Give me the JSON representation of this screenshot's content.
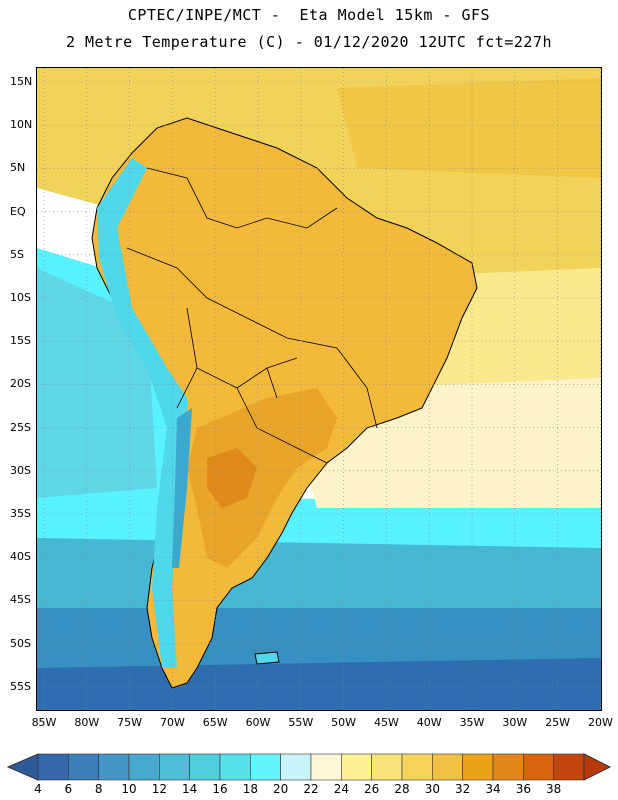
{
  "header": {
    "title_line1": "CPTEC/INPE/MCT -  Eta Model 15km - GFS",
    "title_line2": "2 Metre Temperature (C) - 01/12/2020 12UTC fct=227h"
  },
  "map": {
    "lat_ticks": [
      "15N",
      "10N",
      "5N",
      "EQ",
      "5S",
      "10S",
      "15S",
      "20S",
      "25S",
      "30S",
      "35S",
      "40S",
      "45S",
      "50S",
      "55S"
    ],
    "lon_ticks": [
      "85W",
      "80W",
      "75W",
      "70W",
      "65W",
      "60W",
      "55W",
      "50W",
      "45W",
      "40W",
      "35W",
      "30W",
      "25W",
      "20W"
    ],
    "colors": {
      "ocean_north": "#f2d35a",
      "ocean_north_warm": "#f0c846",
      "ocean_tropical": "#fbe98e",
      "ocean_subtrop": "#fdf3c8",
      "ocean_cool": "#5fd7e6",
      "ocean_cyan": "#59f3ff",
      "ocean_mid": "#46b8d4",
      "ocean_south": "#3690c2",
      "ocean_deep": "#2e6db0",
      "land_warm": "#f2b93a",
      "land_hot": "#e9a52a",
      "land_hotter": "#e08a1c",
      "andes": "#4fd7ea",
      "andes_cold": "#3aa8cf",
      "coastline": "#000000",
      "grid": "#888888"
    }
  },
  "colorbar": {
    "labels": [
      "4",
      "6",
      "8",
      "10",
      "12",
      "14",
      "16",
      "18",
      "20",
      "22",
      "24",
      "26",
      "28",
      "30",
      "32",
      "34",
      "36",
      "38"
    ],
    "colors": [
      "#3468ab",
      "#3b7fb8",
      "#4396c6",
      "#48a9cf",
      "#4dbdd8",
      "#51cfdf",
      "#58e3ec",
      "#63f6ff",
      "#c9f4fb",
      "#fff7d8",
      "#fff194",
      "#fae47a",
      "#f5d45a",
      "#f0c144",
      "#eca318",
      "#e3871d",
      "#d9640f",
      "#c3440d"
    ],
    "arrow_left_color": "#2e5a9a",
    "arrow_right_color": "#b83a0b"
  }
}
